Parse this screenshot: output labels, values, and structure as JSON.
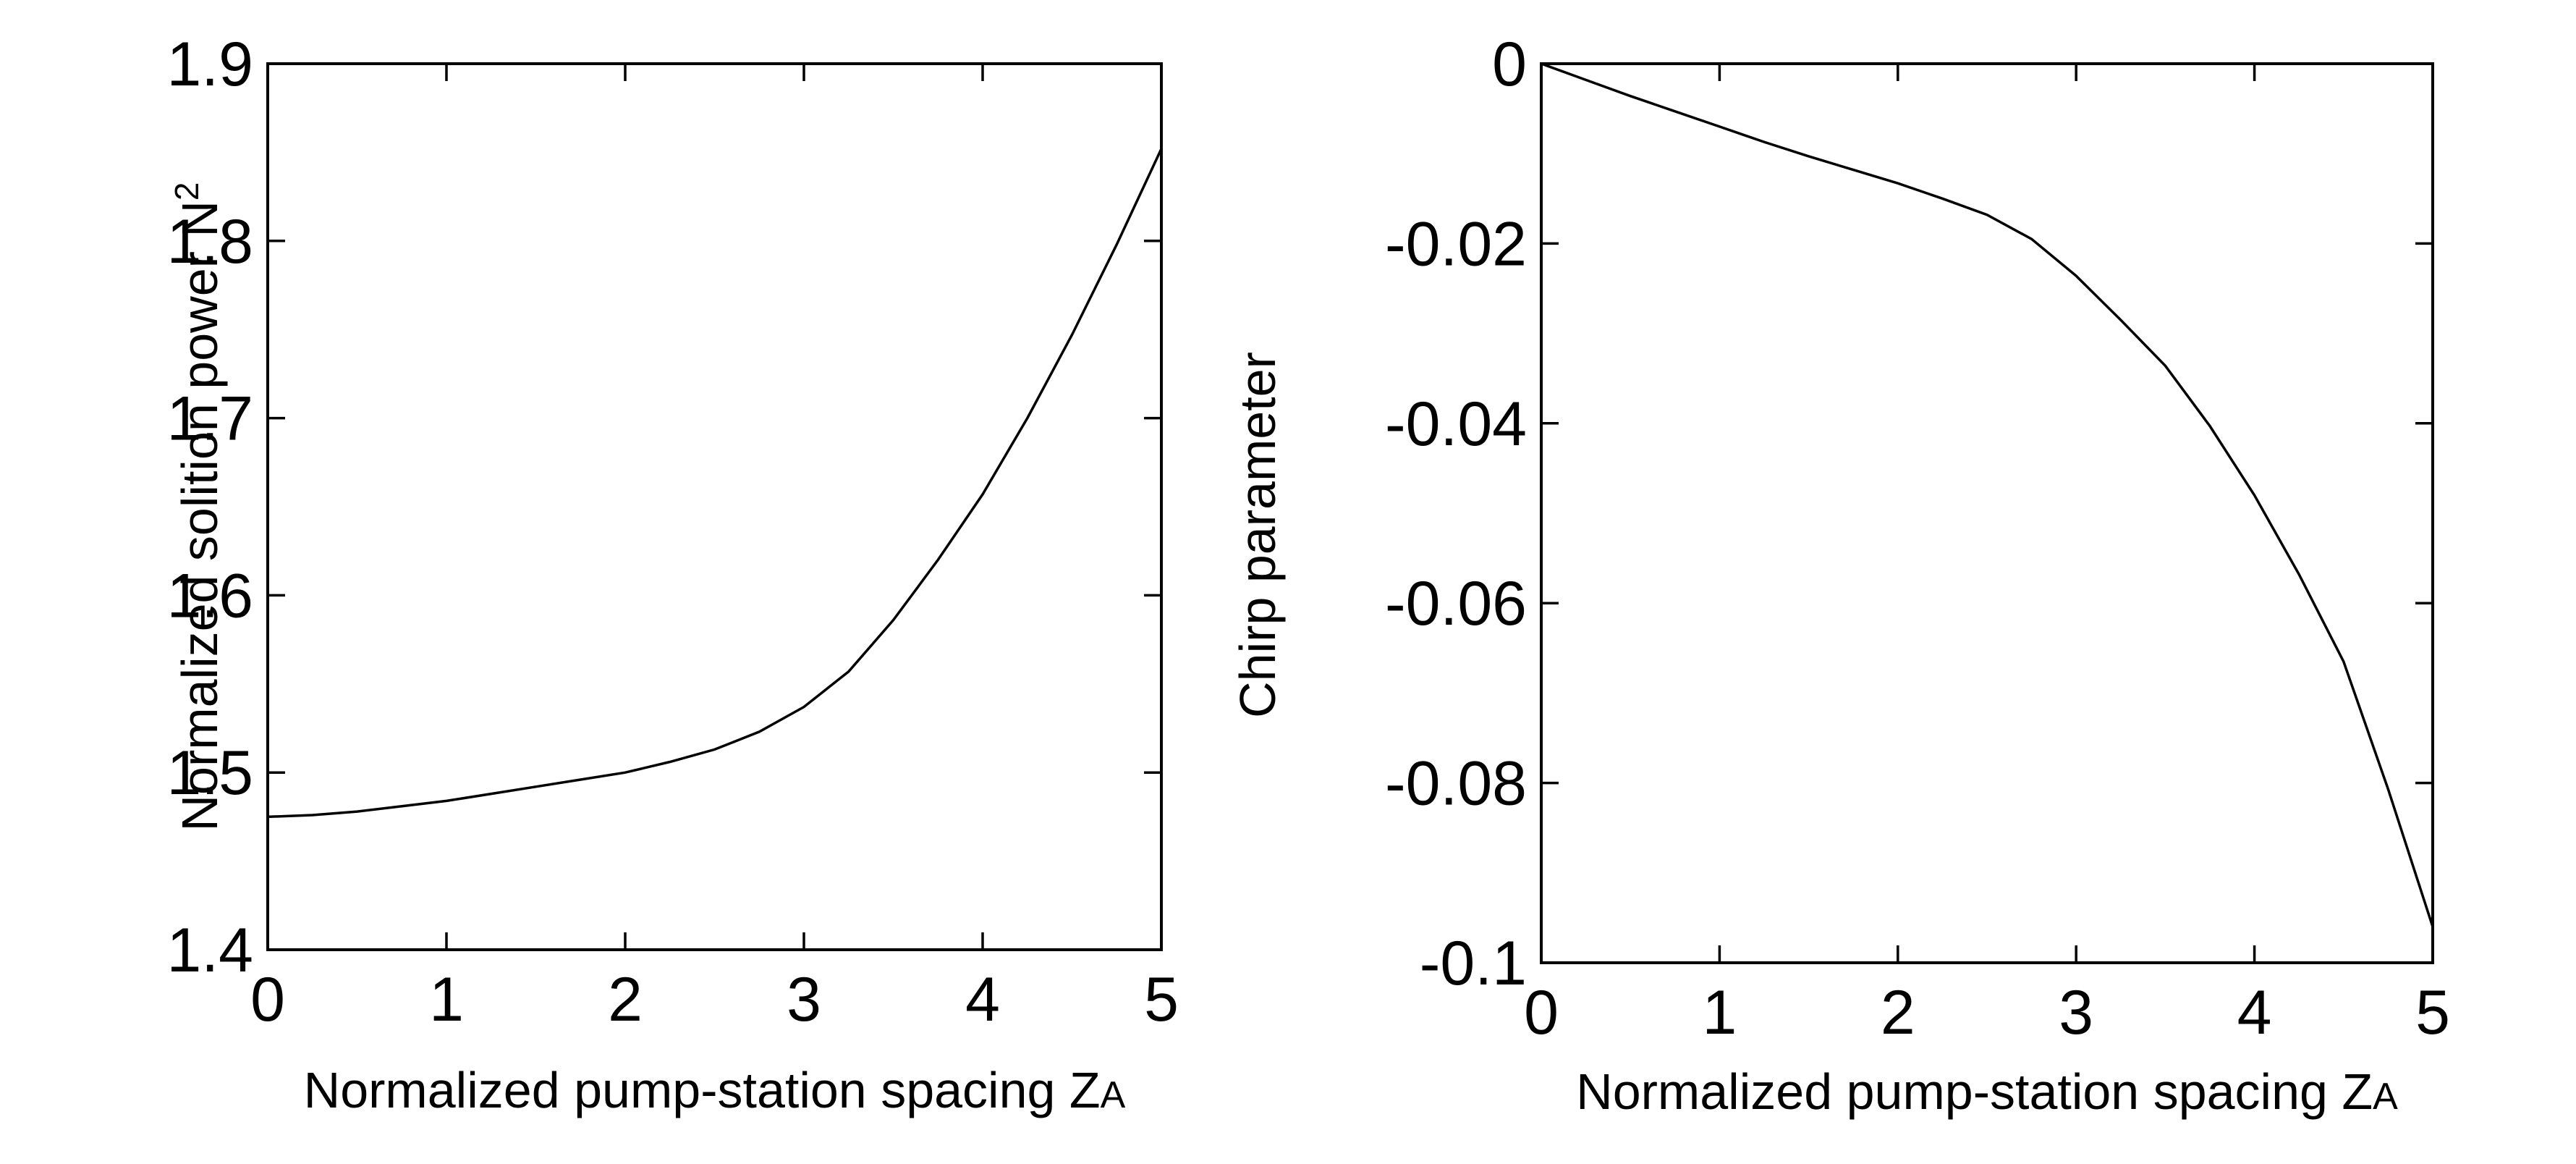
{
  "chart_data": [
    {
      "type": "line",
      "xlabel": "Normalized pump-station spacing Z",
      "xlabel_subscript": "A",
      "ylabel": "Normalized solition power N",
      "ylabel_superscript": "2",
      "xlim": [
        0,
        5
      ],
      "ylim": [
        1.4,
        1.9
      ],
      "xticks": [
        0,
        1,
        2,
        3,
        4,
        5
      ],
      "xtick_labels": [
        "0",
        "1",
        "2",
        "3",
        "4",
        "5"
      ],
      "yticks": [
        1.4,
        1.5,
        1.6,
        1.7,
        1.8,
        1.9
      ],
      "ytick_labels": [
        "1.4",
        "1.5",
        "1.6",
        "1.7",
        "1.8",
        "1.9"
      ],
      "grid": false,
      "series": [
        {
          "name": "solition power",
          "x": [
            0,
            0.25,
            0.5,
            0.75,
            1,
            1.25,
            1.5,
            1.75,
            2,
            2.25,
            2.5,
            2.75,
            3,
            3.25,
            3.5,
            3.75,
            4,
            4.25,
            4.5,
            4.75,
            5
          ],
          "y": [
            1.475,
            1.476,
            1.478,
            1.481,
            1.484,
            1.488,
            1.492,
            1.496,
            1.5,
            1.506,
            1.513,
            1.523,
            1.537,
            1.557,
            1.586,
            1.62,
            1.657,
            1.7,
            1.747,
            1.798,
            1.852
          ]
        }
      ]
    },
    {
      "type": "line",
      "xlabel": "Normalized pump-station spacing Z",
      "xlabel_subscript": "A",
      "ylabel": "Chirp parameter",
      "xlim": [
        0,
        5
      ],
      "ylim": [
        -0.1,
        0
      ],
      "xticks": [
        0,
        1,
        2,
        3,
        4,
        5
      ],
      "xtick_labels": [
        "0",
        "1",
        "2",
        "3",
        "4",
        "5"
      ],
      "yticks": [
        0,
        -0.02,
        -0.04,
        -0.06,
        -0.08,
        -0.1
      ],
      "ytick_labels": [
        "0",
        "-0.02",
        "-0.04",
        "-0.06",
        "-0.08",
        "-0.1"
      ],
      "grid": false,
      "series": [
        {
          "name": "chirp",
          "x": [
            0,
            0.25,
            0.5,
            0.75,
            1,
            1.25,
            1.5,
            1.75,
            2,
            2.25,
            2.5,
            2.75,
            3,
            3.25,
            3.5,
            3.75,
            4,
            4.25,
            4.5,
            4.75,
            5
          ],
          "y": [
            0,
            -0.0018,
            -0.0036,
            -0.0053,
            -0.007,
            -0.0087,
            -0.0103,
            -0.0118,
            -0.0133,
            -0.015,
            -0.0168,
            -0.0195,
            -0.0236,
            -0.0285,
            -0.0336,
            -0.0403,
            -0.048,
            -0.0568,
            -0.0665,
            -0.0807,
            -0.096
          ]
        }
      ]
    }
  ]
}
